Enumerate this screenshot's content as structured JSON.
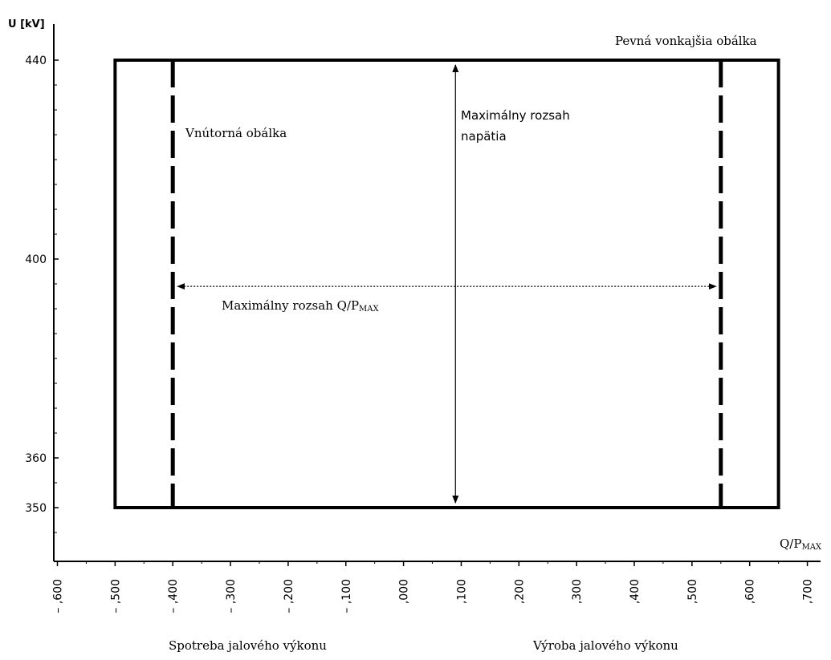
{
  "chart_data": {
    "type": "line",
    "title": "",
    "ylabel": "U [kV]",
    "xlabel_main": "Q/P",
    "xlabel_sub": "MAX",
    "x_tick_labels": [
      ",600",
      ",500",
      ",400",
      ",300",
      ",200",
      ",100",
      ",000",
      ",100",
      ",200",
      ",300",
      ",400",
      ",500",
      ",600",
      ",700"
    ],
    "x_tick_values": [
      -0.6,
      -0.5,
      -0.4,
      -0.3,
      -0.2,
      -0.1,
      0.0,
      0.1,
      0.2,
      0.3,
      0.4,
      0.5,
      0.6,
      0.7
    ],
    "x_tick_minus": true,
    "y_tick_labels": [
      "440",
      "400",
      "360",
      "350"
    ],
    "y_tick_values": [
      440,
      400,
      360,
      350
    ],
    "xlim": [
      -0.6,
      0.7
    ],
    "outer_envelope": {
      "x": [
        -0.5,
        0.65
      ],
      "y": [
        350,
        440
      ]
    },
    "inner_envelope": {
      "x": [
        -0.4,
        0.55
      ],
      "y": [
        350,
        440
      ]
    },
    "voltage_arrow_x": 0.09,
    "q_arrow_y": 394.5,
    "annotations": {
      "outer": "Pevná vonkajšia obálka",
      "inner": "Vnútorná obálka",
      "max_voltage_line1": "Maximálny rozsah",
      "max_voltage_line2": "napätia",
      "max_q_main": "Maximálny rozsah Q/P",
      "max_q_sub": "MAX",
      "consumption": "Spotreba jalového výkonu",
      "production": "Výroba jalového výkonu"
    }
  }
}
